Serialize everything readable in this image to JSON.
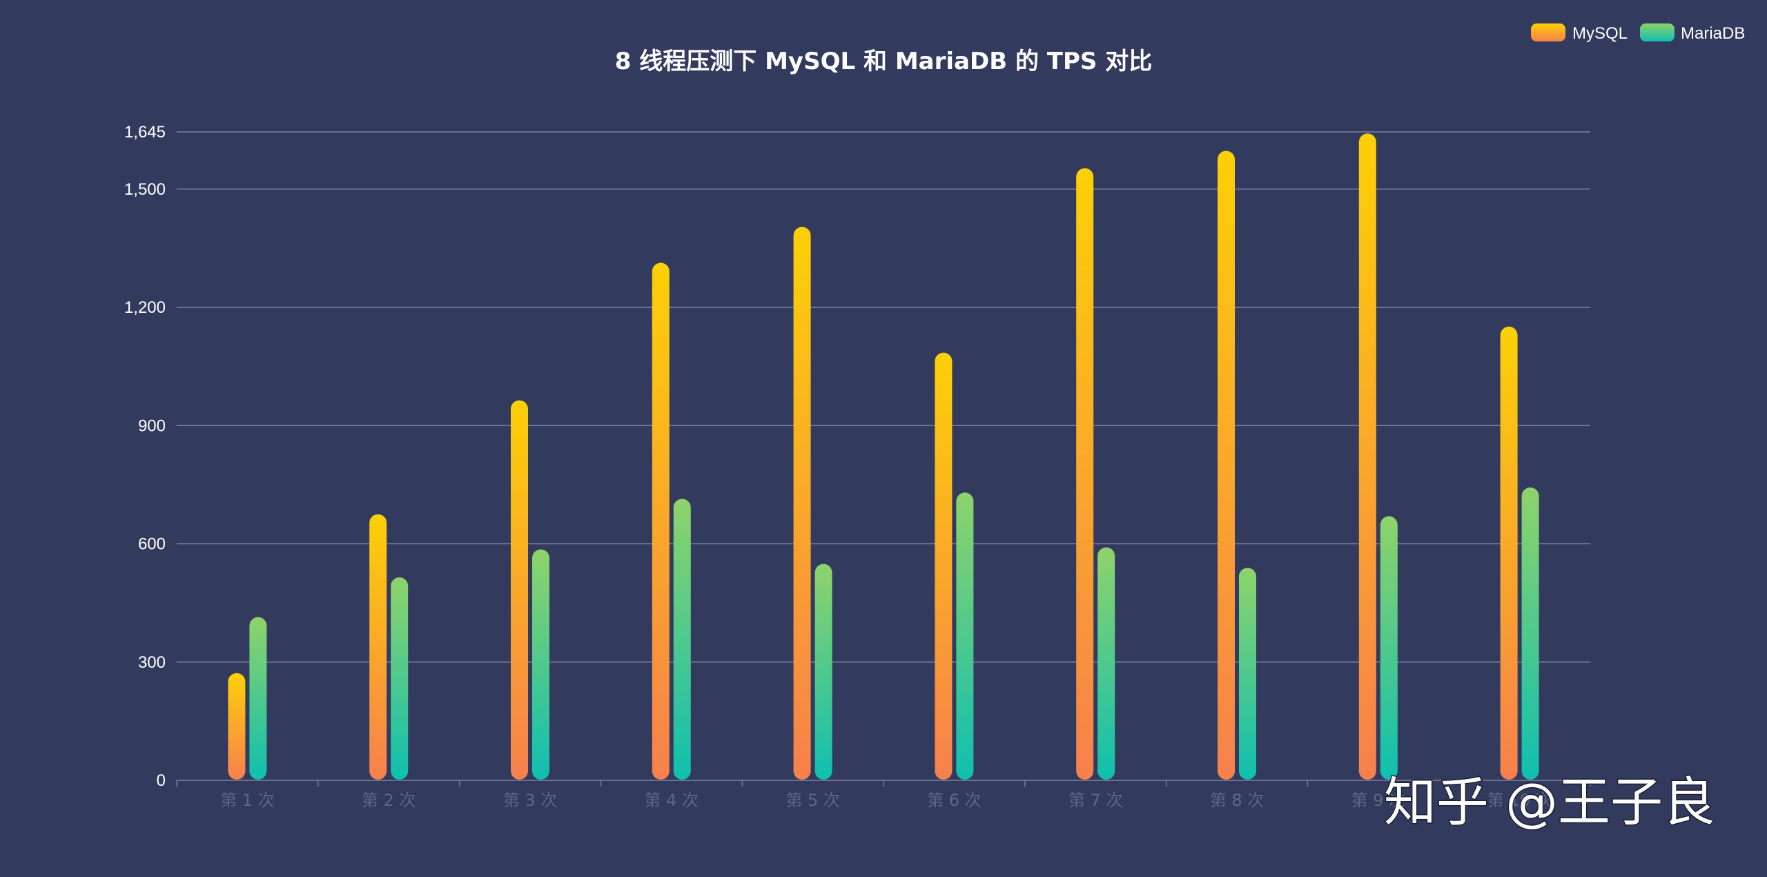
{
  "chart_data": {
    "type": "bar",
    "title": "8 线程压测下 MySQL 和 MariaDB 的 TPS 对比",
    "categories": [
      "第 1 次",
      "第 2 次",
      "第 3 次",
      "第 4 次",
      "第 5 次",
      "第 6 次",
      "第 7 次",
      "第 8 次",
      "第 9 次",
      "第 10 次"
    ],
    "series": [
      {
        "name": "MySQL",
        "values": [
          272,
          675,
          964,
          1313,
          1404,
          1085,
          1553,
          1597,
          1641,
          1151
        ]
      },
      {
        "name": "MariaDB",
        "values": [
          414,
          515,
          586,
          714,
          549,
          730,
          591,
          539,
          670,
          743
        ]
      }
    ],
    "yticks": [
      0,
      300,
      600,
      900,
      1200,
      1500,
      1645
    ],
    "ytick_labels": [
      "0",
      "300",
      "600",
      "900",
      "1,200",
      "1,500",
      "1,645"
    ],
    "ylim": [
      0,
      1645
    ],
    "xlabel": "",
    "ylabel": "",
    "grid": true,
    "legend_position": "top-right",
    "colors": {
      "background": "#323a5e",
      "grid": "#7c82a0",
      "axis": "#7c82a0",
      "mysql_top": "#fcd006",
      "mysql_bottom": "#f7804d",
      "mariadb_top": "#8fd36a",
      "mariadb_bottom": "#0fbfb0"
    }
  },
  "watermark": {
    "text": "知乎 @王子良"
  }
}
